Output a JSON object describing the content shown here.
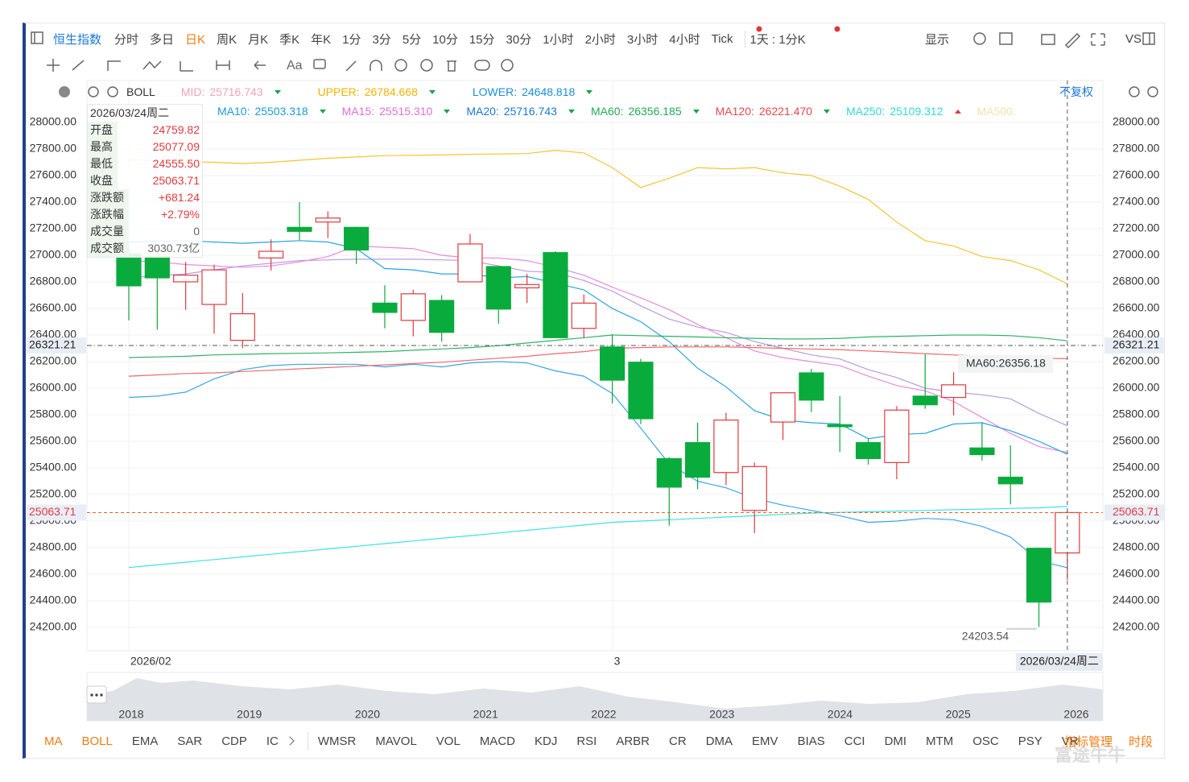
{
  "toolbar": {
    "symbol": "恒生指数",
    "periods": [
      "分时",
      "多日",
      "日K",
      "周K",
      "月K",
      "季K",
      "年K",
      "1分",
      "3分",
      "5分",
      "10分",
      "15分",
      "30分",
      "1小时",
      "2小时",
      "3小时",
      "4小时",
      "Tick"
    ],
    "active": 2,
    "range": "1天 : 1分K",
    "display": "显示",
    "vs": "VS"
  },
  "tools": {
    "text_tool": "Aa"
  },
  "indicator": {
    "name": "BOLL",
    "items": [
      {
        "label": "MID:",
        "value": "25716.743",
        "color": "#f2a3b8"
      },
      {
        "label": "UPPER:",
        "value": "26784.668",
        "color": "#f0b400"
      },
      {
        "label": "LOWER:",
        "value": "24648.818",
        "color": "#1a8fd8"
      }
    ],
    "adjust": "不复权"
  },
  "ma_legend": [
    {
      "label": "MA10:",
      "value": "25503.318",
      "color": "#1a9ad6"
    },
    {
      "label": "MA15:",
      "value": "25515.310",
      "color": "#e070d0"
    },
    {
      "label": "MA20:",
      "value": "25716.743",
      "color": "#1a78d6"
    },
    {
      "label": "MA60:",
      "value": "26356.185",
      "color": "#22aa55"
    },
    {
      "label": "MA120:",
      "value": "26221.470",
      "color": "#e8474c"
    },
    {
      "label": "MA250:",
      "value": "25109.312",
      "color": "#30d8d8",
      "arrow": "up"
    },
    {
      "label": "MA500:",
      "color": "#f4e2b0"
    }
  ],
  "info": {
    "date": "2026/03/24周二",
    "rows": [
      {
        "label": "开盘",
        "value": "24759.82",
        "color": "#e0393e"
      },
      {
        "label": "最高",
        "value": "25077.09",
        "color": "#e0393e"
      },
      {
        "label": "最低",
        "value": "24555.50",
        "color": "#e0393e"
      },
      {
        "label": "收盘",
        "value": "25063.71",
        "color": "#e0393e"
      },
      {
        "label": "涨跌额",
        "value": "+681.24",
        "color": "#e0393e"
      },
      {
        "label": "涨跌幅",
        "value": "+2.79%",
        "color": "#e0393e"
      },
      {
        "label": "成交量",
        "value": "0",
        "color": "#666666"
      },
      {
        "label": "成交额",
        "value": "3030.73亿",
        "color": "#666666"
      }
    ]
  },
  "chart_data": {
    "type": "candlestick",
    "up_color": "#e0393e",
    "down_color": "#0aab3d",
    "candles": [
      {
        "open": 27010,
        "high": 27050,
        "low": 26510,
        "close": 26770
      },
      {
        "open": 26990,
        "high": 27000,
        "low": 26440,
        "close": 26830
      },
      {
        "open": 26800,
        "high": 26950,
        "low": 26590,
        "close": 26850
      },
      {
        "open": 26630,
        "high": 26930,
        "low": 26410,
        "close": 26890
      },
      {
        "open": 26360,
        "high": 26715,
        "low": 26300,
        "close": 26560
      },
      {
        "open": 26980,
        "high": 27120,
        "low": 26885,
        "close": 27030
      },
      {
        "open": 27210,
        "high": 27400,
        "low": 27115,
        "close": 27180
      },
      {
        "open": 27250,
        "high": 27330,
        "low": 27130,
        "close": 27280
      },
      {
        "open": 27210,
        "high": 27215,
        "low": 26935,
        "close": 27040
      },
      {
        "open": 26640,
        "high": 26775,
        "low": 26450,
        "close": 26570
      },
      {
        "open": 26510,
        "high": 26740,
        "low": 26390,
        "close": 26710
      },
      {
        "open": 26660,
        "high": 26700,
        "low": 26350,
        "close": 26420
      },
      {
        "open": 26800,
        "high": 27160,
        "low": 26800,
        "close": 27085
      },
      {
        "open": 26915,
        "high": 26915,
        "low": 26485,
        "close": 26595
      },
      {
        "open": 26755,
        "high": 26860,
        "low": 26640,
        "close": 26780
      },
      {
        "open": 27020,
        "high": 27030,
        "low": 26380,
        "close": 26380
      },
      {
        "open": 26450,
        "high": 26705,
        "low": 26380,
        "close": 26640
      },
      {
        "open": 26310,
        "high": 26405,
        "low": 25885,
        "close": 26060
      },
      {
        "open": 26195,
        "high": 26220,
        "low": 25730,
        "close": 25770
      },
      {
        "open": 25470,
        "high": 25480,
        "low": 24965,
        "close": 25255
      },
      {
        "open": 25590,
        "high": 25740,
        "low": 25240,
        "close": 25330
      },
      {
        "open": 25365,
        "high": 25815,
        "low": 25270,
        "close": 25760
      },
      {
        "open": 25080,
        "high": 25440,
        "low": 24910,
        "close": 25410
      },
      {
        "open": 25745,
        "high": 25965,
        "low": 25610,
        "close": 25965
      },
      {
        "open": 26115,
        "high": 26145,
        "low": 25820,
        "close": 25910
      },
      {
        "open": 25725,
        "high": 25940,
        "low": 25520,
        "close": 25710
      },
      {
        "open": 25590,
        "high": 25620,
        "low": 25425,
        "close": 25470
      },
      {
        "open": 25440,
        "high": 25865,
        "low": 25315,
        "close": 25835
      },
      {
        "open": 25940,
        "high": 26255,
        "low": 25845,
        "close": 25875
      },
      {
        "open": 25930,
        "high": 26120,
        "low": 25795,
        "close": 26025
      },
      {
        "open": 25550,
        "high": 25740,
        "low": 25455,
        "close": 25500
      },
      {
        "open": 25330,
        "high": 25570,
        "low": 25125,
        "close": 25280
      },
      {
        "open": 24795,
        "high": 24800,
        "low": 24203.54,
        "close": 24390
      },
      {
        "open": 24759.82,
        "high": 25077.09,
        "low": 24555.5,
        "close": 25063.71
      }
    ],
    "series": [
      {
        "name": "UPPER",
        "color": "#f5c431",
        "values": [
          27720,
          27710,
          27705,
          27700,
          27690,
          27700,
          27715,
          27730,
          27740,
          27750,
          27752,
          27755,
          27760,
          27762,
          27765,
          27790,
          27770,
          27660,
          27510,
          27580,
          27660,
          27650,
          27660,
          27620,
          27600,
          27520,
          27420,
          27250,
          27110,
          27070,
          26990,
          26960,
          26890,
          26784.668
        ]
      },
      {
        "name": "MA20",
        "color": "#b99be0",
        "values": [
          26830,
          26845,
          26860,
          26890,
          26920,
          26940,
          26960,
          26965,
          26970,
          26970,
          26970,
          26965,
          26960,
          26920,
          26880,
          26870,
          26810,
          26730,
          26620,
          26520,
          26460,
          26420,
          26350,
          26300,
          26250,
          26220,
          26140,
          26080,
          26000,
          25970,
          25950,
          25920,
          25810,
          25716.743
        ]
      },
      {
        "name": "MA15",
        "color": "#e78bdc",
        "values": [
          26960,
          26950,
          26930,
          26920,
          26910,
          26920,
          26950,
          26990,
          27070,
          27060,
          27050,
          27000,
          26980,
          26980,
          26960,
          26910,
          26850,
          26760,
          26680,
          26590,
          26480,
          26380,
          26280,
          26230,
          26200,
          26170,
          26090,
          26020,
          25980,
          25900,
          25780,
          25660,
          25560,
          25515.31
        ]
      },
      {
        "name": "MA10",
        "color": "#28a4de",
        "values": [
          27100,
          27105,
          27110,
          27100,
          27090,
          27100,
          27110,
          27100,
          27050,
          26900,
          26890,
          26860,
          26860,
          26830,
          26840,
          26790,
          26740,
          26600,
          26500,
          26350,
          26150,
          26010,
          25830,
          25760,
          25740,
          25730,
          25620,
          25650,
          25660,
          25730,
          25740,
          25680,
          25600,
          25503.318
        ]
      },
      {
        "name": "LOWER",
        "color": "#3aa6e6",
        "values": [
          25930,
          25940,
          25970,
          26070,
          26140,
          26170,
          26180,
          26180,
          26180,
          26160,
          26180,
          26160,
          26190,
          26200,
          26190,
          26130,
          26090,
          25960,
          25700,
          25430,
          25300,
          25250,
          25170,
          25120,
          25080,
          25040,
          24990,
          25000,
          25020,
          25010,
          24960,
          24880,
          24700,
          24648.818
        ]
      },
      {
        "name": "MA60",
        "color": "#2db36b",
        "values": [
          26230,
          26235,
          26240,
          26250,
          26255,
          26260,
          26262,
          26265,
          26270,
          26275,
          26285,
          26295,
          26305,
          26320,
          26340,
          26360,
          26380,
          26400,
          26395,
          26390,
          26385,
          26380,
          26375,
          26370,
          26370,
          26375,
          26385,
          26390,
          26395,
          26400,
          26400,
          26395,
          26380,
          26356.185
        ]
      },
      {
        "name": "MA120",
        "color": "#ee6a6e",
        "values": [
          26090,
          26100,
          26110,
          26115,
          26125,
          26135,
          26145,
          26155,
          26165,
          26175,
          26185,
          26195,
          26210,
          26225,
          26240,
          26260,
          26275,
          26300,
          26305,
          26310,
          26310,
          26310,
          26305,
          26300,
          26295,
          26290,
          26280,
          26270,
          26260,
          26250,
          26240,
          26235,
          26225,
          26221.47
        ]
      },
      {
        "name": "MA250",
        "color": "#3de2e2",
        "values": [
          24650,
          24670,
          24690,
          24710,
          24730,
          24750,
          24770,
          24790,
          24810,
          24830,
          24850,
          24870,
          24890,
          24910,
          24930,
          24950,
          24970,
          24990,
          25000,
          25010,
          25020,
          25030,
          25040,
          25050,
          25060,
          25065,
          25070,
          25075,
          25080,
          25085,
          25090,
          25095,
          25100,
          25109.312
        ]
      }
    ],
    "ylim": [
      24024,
      28315
    ],
    "yticks": [
      {
        "value": 28000,
        "label": "28000.00"
      },
      {
        "value": 27800,
        "label": "27800.00"
      },
      {
        "value": 27600,
        "label": "27600.00"
      },
      {
        "value": 27400,
        "label": "27400.00"
      },
      {
        "value": 27200,
        "label": "27200.00"
      },
      {
        "value": 27000,
        "label": "27000.00"
      },
      {
        "value": 26800,
        "label": "26800.00"
      },
      {
        "value": 26600,
        "label": "26600.00"
      },
      {
        "value": 26400,
        "label": "26400.00"
      },
      {
        "value": 26200,
        "label": "26200.00"
      },
      {
        "value": 26000,
        "label": "26000.00"
      },
      {
        "value": 25800,
        "label": "25800.00"
      },
      {
        "value": 25600,
        "label": "25600.00"
      },
      {
        "value": 25400,
        "label": "25400.00"
      },
      {
        "value": 25200,
        "label": "25200.00"
      },
      {
        "value": 25000,
        "label": "25000.00"
      },
      {
        "value": 24800,
        "label": "24800.00"
      },
      {
        "value": 24600,
        "label": "24600.00"
      },
      {
        "value": 24400,
        "label": "24400.00"
      },
      {
        "value": 24200,
        "label": "24200.00"
      }
    ],
    "grid": true,
    "hlines": [
      {
        "value": 26321.21,
        "label": "26321.21",
        "color": "#555555",
        "text_color": "#222222"
      },
      {
        "value": 25063.71,
        "label": "25063.71",
        "color": "#e8632d",
        "text_color": "#e0393e"
      }
    ],
    "x_labels": [
      {
        "at": 0,
        "label": "2026/02"
      },
      {
        "at": 17,
        "label": "3"
      }
    ],
    "crosshair": {
      "at": 33,
      "label": "2026/03/24周二"
    },
    "annotations": [
      {
        "text": "MA60:26356.18"
      },
      {
        "text": "24203.54"
      }
    ]
  },
  "navigator": {
    "years": [
      "2018",
      "2019",
      "2020",
      "2021",
      "2022",
      "2023",
      "2024",
      "2025",
      "2026"
    ]
  },
  "tabs": {
    "items": [
      "MA",
      "BOLL",
      "EMA",
      "SAR",
      "CDP",
      "IC",
      "WMSR",
      "MAVOL",
      "VOL",
      "MACD",
      "KDJ",
      "RSI",
      "ARBR",
      "CR",
      "DMA",
      "EMV",
      "BIAS",
      "CCI",
      "DMI",
      "MTM",
      "OSC",
      "PSY",
      "VR"
    ],
    "active": [
      0,
      1
    ],
    "manage": "指标管理",
    "session": "时段"
  },
  "watermark": "富途牛牛"
}
